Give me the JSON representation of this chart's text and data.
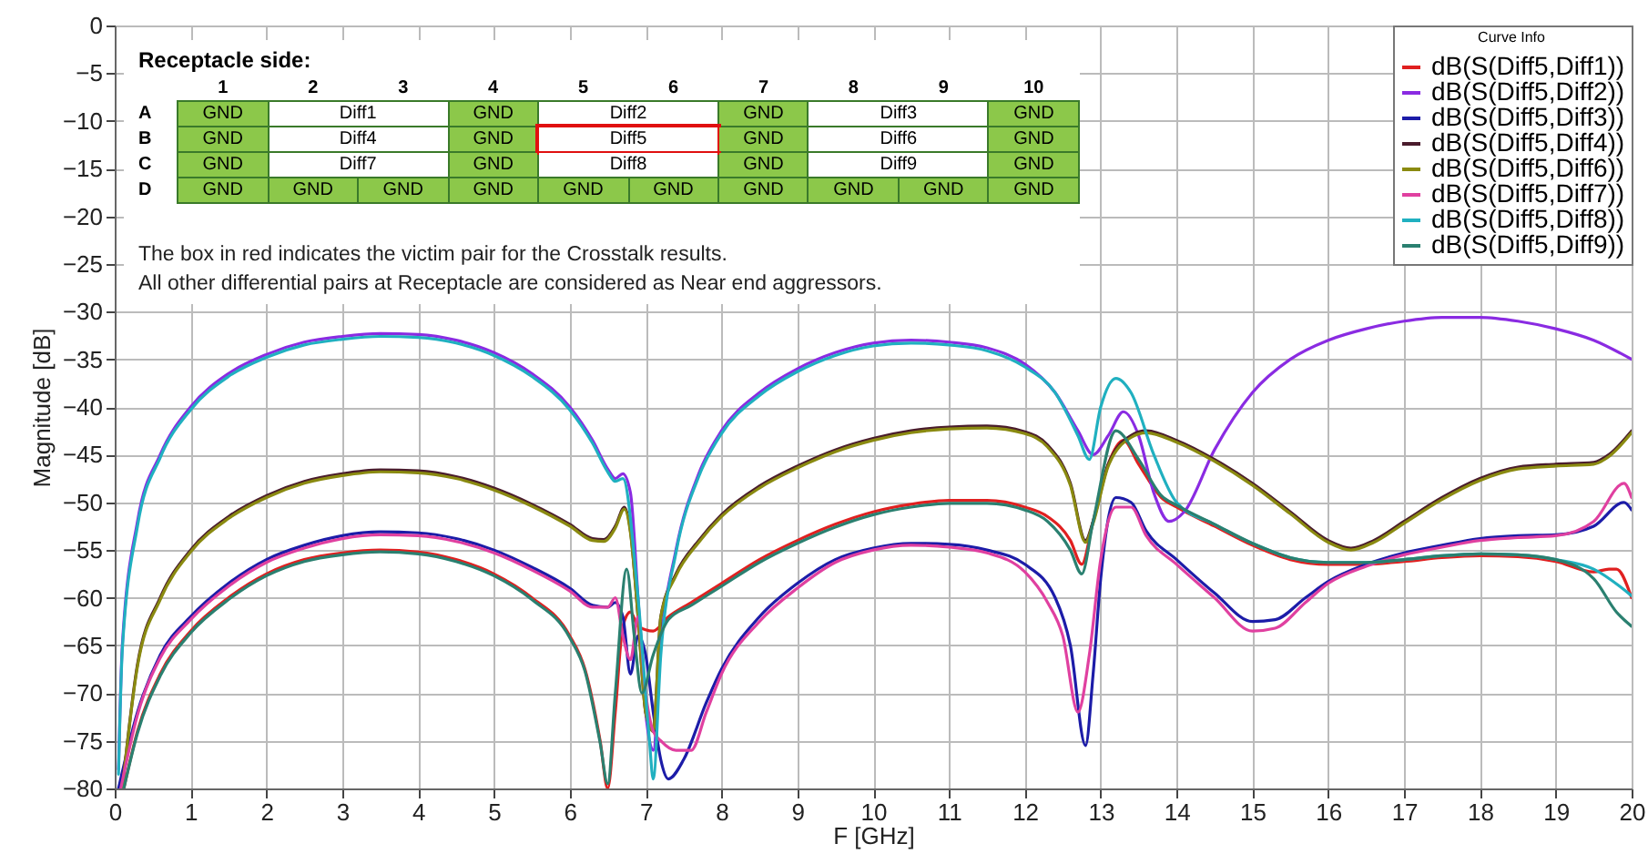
{
  "chart_data": {
    "type": "line",
    "xlabel": "F [GHz]",
    "ylabel": "Magnitude [dB]",
    "legend_title": "Curve Info",
    "legend": "top right",
    "grid": true,
    "xlim": [
      0,
      20
    ],
    "xticks": [
      0,
      1,
      2,
      3,
      4,
      5,
      6,
      7,
      8,
      9,
      10,
      11,
      12,
      13,
      14,
      15,
      16,
      17,
      18,
      19,
      20
    ],
    "ylim": [
      -80,
      0
    ],
    "yticks": [
      0,
      -5,
      -10,
      -15,
      -20,
      -25,
      -30,
      -35,
      -40,
      -45,
      -50,
      -55,
      -60,
      -65,
      -70,
      -75,
      -80
    ],
    "annotations": [
      "Receptacle side:",
      "1",
      "2",
      "3",
      "4",
      "5",
      "6",
      "7",
      "8",
      "9",
      "10",
      "A",
      "GND",
      "Diff1",
      "GND",
      "Diff2",
      "GND",
      "Diff3",
      "GND",
      "B",
      "GND",
      "Diff4",
      "GND",
      "Diff5",
      "GND",
      "Diff6",
      "GND",
      "C",
      "GND",
      "Diff7",
      "GND",
      "Diff8",
      "GND",
      "Diff9",
      "GND",
      "D",
      "GND",
      "GND",
      "GND",
      "GND",
      "GND",
      "GND",
      "GND",
      "GND",
      "GND",
      "GND",
      "The box in red indicates the victim pair for the Crosstalk results.",
      "All other differential pairs at Receptacle are considered as Near end aggressors."
    ],
    "series": [
      {
        "name": "dB(S(Diff5,Diff1))",
        "color": "#e02020",
        "x": [
          0.12,
          0.3,
          0.6,
          1,
          1.5,
          2,
          2.5,
          3,
          3.5,
          4,
          4.5,
          5,
          5.5,
          6,
          6.2,
          6.4,
          6.5,
          6.6,
          6.7,
          6.8,
          6.9,
          7.1,
          7.3,
          7.6,
          8,
          8.5,
          9,
          9.5,
          10,
          10.5,
          11,
          11.5,
          12,
          12.3,
          12.6,
          12.75,
          12.9,
          13.1,
          13.3,
          13.5,
          13.8,
          14,
          14.5,
          15,
          15.5,
          16,
          16.5,
          17,
          17.5,
          18,
          18.5,
          19,
          19.5,
          19.7,
          19.8,
          20
        ],
        "values": [
          -80,
          -74,
          -68,
          -63.5,
          -60,
          -57.5,
          -56,
          -55.3,
          -55,
          -55.2,
          -56,
          -57.5,
          -60,
          -64,
          -67.5,
          -75,
          -80,
          -72,
          -63,
          -61.5,
          -63,
          -63.5,
          -62,
          -60.5,
          -58.5,
          -56,
          -54,
          -52.3,
          -51,
          -50.2,
          -49.8,
          -49.8,
          -50.5,
          -51.5,
          -54,
          -56.5,
          -52,
          -46,
          -43.5,
          -46,
          -49.5,
          -50.5,
          -52.5,
          -54.5,
          -56,
          -56.5,
          -56.5,
          -56.2,
          -55.8,
          -55.6,
          -55.7,
          -56.2,
          -57.3,
          -57,
          -57,
          -60
        ]
      },
      {
        "name": "dB(S(Diff5,Diff2))",
        "color": "#8a2be2",
        "x": [
          0.05,
          0.1,
          0.3,
          0.6,
          1,
          1.5,
          2,
          2.5,
          3,
          3.5,
          4,
          4.5,
          5,
          5.5,
          6,
          6.3,
          6.5,
          6.6,
          6.7,
          6.8,
          6.9,
          7,
          7.1,
          7.2,
          7.4,
          7.7,
          8,
          8.5,
          9,
          9.5,
          10,
          10.5,
          11,
          11.5,
          12,
          12.4,
          12.7,
          12.9,
          13.1,
          13.3,
          13.5,
          13.7,
          13.9,
          14.1,
          14.5,
          15,
          15.5,
          16,
          16.5,
          17,
          17.5,
          18,
          18.5,
          19,
          19.5,
          20
        ],
        "values": [
          -78,
          -65,
          -52,
          -45,
          -40,
          -36.5,
          -34.5,
          -33.2,
          -32.6,
          -32.3,
          -32.4,
          -33,
          -34.3,
          -36.5,
          -40,
          -43.5,
          -46.5,
          -47.5,
          -47,
          -49,
          -60,
          -72,
          -76,
          -65,
          -55,
          -47,
          -42.5,
          -38.5,
          -36,
          -34.3,
          -33.3,
          -33,
          -33.2,
          -33.8,
          -35.5,
          -38.5,
          -42.5,
          -45,
          -43,
          -40.5,
          -43,
          -49,
          -52,
          -51,
          -44.5,
          -38.5,
          -35,
          -33,
          -31.8,
          -31,
          -30.6,
          -30.6,
          -31,
          -31.8,
          -33,
          -35
        ]
      },
      {
        "name": "dB(S(Diff5,Diff3))",
        "color": "#1c1ca8",
        "x": [
          0.05,
          0.3,
          0.6,
          1,
          1.5,
          2,
          2.5,
          3,
          3.5,
          4,
          4.5,
          5,
          5.5,
          6,
          6.3,
          6.5,
          6.6,
          6.7,
          6.8,
          6.9,
          7,
          7.1,
          7.2,
          7.3,
          7.5,
          7.8,
          8,
          8.5,
          9,
          9.5,
          10,
          10.5,
          11,
          11.5,
          12,
          12.4,
          12.6,
          12.8,
          12.9,
          13,
          13.2,
          13.4,
          13.6,
          14,
          14.5,
          15,
          15.3,
          15.7,
          16,
          16.5,
          17,
          17.5,
          18,
          18.5,
          19,
          19.5,
          19.9,
          20
        ],
        "values": [
          -80,
          -72,
          -66,
          -62,
          -58.5,
          -56,
          -54.5,
          -53.5,
          -53.1,
          -53.2,
          -53.8,
          -55,
          -56.8,
          -59,
          -60.8,
          -61,
          -60.5,
          -62,
          -68,
          -64,
          -66,
          -72,
          -77,
          -79,
          -77,
          -71,
          -67.5,
          -62,
          -58.5,
          -56,
          -54.8,
          -54.3,
          -54.4,
          -55,
          -56.5,
          -60,
          -65,
          -75.5,
          -68,
          -58,
          -49.5,
          -50,
          -53,
          -56,
          -59.5,
          -62.5,
          -62.3,
          -60,
          -58.3,
          -56.5,
          -55.3,
          -54.5,
          -53.8,
          -53.5,
          -53.4,
          -52.5,
          -50,
          -50.8
        ]
      },
      {
        "name": "dB(S(Diff5,Diff4))",
        "color": "#4a1c2c",
        "x": [
          0.1,
          0.3,
          0.6,
          1,
          1.5,
          2,
          2.5,
          3,
          3.5,
          4,
          4.5,
          5,
          5.5,
          6,
          6.3,
          6.45,
          6.6,
          6.72,
          6.8,
          6.9,
          7,
          7.1,
          7.2,
          7.4,
          7.7,
          8,
          8.5,
          9,
          9.5,
          10,
          10.5,
          11,
          11.5,
          12,
          12.3,
          12.6,
          12.8,
          12.9,
          13.1,
          13.4,
          13.6,
          14,
          14.5,
          15,
          15.5,
          16,
          16.3,
          16.6,
          17,
          17.5,
          18,
          18.5,
          19,
          19.5,
          19.7,
          20
        ],
        "values": [
          -80,
          -67,
          -60,
          -55,
          -51.5,
          -49.3,
          -47.8,
          -47,
          -46.6,
          -46.7,
          -47.3,
          -48.5,
          -50.2,
          -52.3,
          -53.8,
          -53.9,
          -52.5,
          -50.5,
          -53,
          -62,
          -72,
          -74,
          -62,
          -57.5,
          -54,
          -51.3,
          -48.3,
          -46.2,
          -44.5,
          -43.3,
          -42.5,
          -42.1,
          -42,
          -42.6,
          -44,
          -48,
          -54,
          -52,
          -46,
          -43,
          -42.5,
          -43.5,
          -45.5,
          -48,
          -51,
          -54,
          -54.8,
          -54,
          -52,
          -49.5,
          -47.5,
          -46.3,
          -46,
          -45.8,
          -45,
          -42.5
        ]
      },
      {
        "name": "dB(S(Diff5,Diff6))",
        "color": "#8a8a10",
        "x": [
          0.1,
          0.3,
          0.6,
          1,
          1.5,
          2,
          2.5,
          3,
          3.5,
          4,
          4.5,
          5,
          5.5,
          6,
          6.3,
          6.45,
          6.6,
          6.72,
          6.8,
          6.9,
          7,
          7.1,
          7.2,
          7.4,
          7.7,
          8,
          8.5,
          9,
          9.5,
          10,
          10.5,
          11,
          11.5,
          12,
          12.3,
          12.6,
          12.8,
          12.9,
          13.1,
          13.4,
          13.6,
          14,
          14.5,
          15,
          15.5,
          16,
          16.3,
          16.6,
          17,
          17.5,
          18,
          18.5,
          19,
          19.5,
          19.7,
          20
        ],
        "values": [
          -80,
          -67.2,
          -60.2,
          -55.2,
          -51.7,
          -49.5,
          -48,
          -47.2,
          -46.8,
          -46.9,
          -47.5,
          -48.7,
          -50.4,
          -52.5,
          -54,
          -54.1,
          -52.7,
          -50.7,
          -53.2,
          -62,
          -72,
          -74,
          -62,
          -57.7,
          -54.2,
          -51.5,
          -48.5,
          -46.4,
          -44.7,
          -43.5,
          -42.7,
          -42.3,
          -42.2,
          -42.8,
          -44.2,
          -48.2,
          -54.2,
          -52.2,
          -46.2,
          -43.2,
          -42.7,
          -43.7,
          -45.7,
          -48.2,
          -51.2,
          -54.2,
          -55,
          -54.2,
          -52.2,
          -49.7,
          -47.7,
          -46.5,
          -46.2,
          -46,
          -45.2,
          -42.7
        ]
      },
      {
        "name": "dB(S(Diff5,Diff7))",
        "color": "#e040a0",
        "x": [
          0.08,
          0.3,
          0.6,
          1,
          1.5,
          2,
          2.5,
          3,
          3.5,
          4,
          4.5,
          5,
          5.5,
          6,
          6.3,
          6.5,
          6.6,
          6.7,
          6.8,
          6.9,
          7,
          7.1,
          7.2,
          7.4,
          7.6,
          7.8,
          8,
          8.5,
          9,
          9.5,
          10,
          10.5,
          11,
          11.5,
          12,
          12.3,
          12.5,
          12.7,
          12.85,
          13,
          13.2,
          13.4,
          13.6,
          14,
          14.5,
          15,
          15.3,
          15.7,
          16,
          16.5,
          17,
          17.5,
          18,
          18.5,
          19,
          19.5,
          19.9,
          20
        ],
        "values": [
          -80,
          -72.3,
          -66.3,
          -62.3,
          -58.8,
          -56.3,
          -54.8,
          -53.8,
          -53.4,
          -53.5,
          -54.1,
          -55.3,
          -57.1,
          -59.3,
          -61,
          -61,
          -60,
          -64,
          -66.5,
          -62,
          -70,
          -74,
          -75,
          -76,
          -76,
          -72,
          -68,
          -62.5,
          -59,
          -56.3,
          -55,
          -54.5,
          -54.7,
          -55.3,
          -57.3,
          -60.5,
          -64,
          -72,
          -66,
          -56,
          -50.5,
          -50.5,
          -53.5,
          -56.5,
          -60,
          -63.5,
          -63.2,
          -60.5,
          -58.5,
          -56.7,
          -55.5,
          -54.7,
          -54,
          -53.7,
          -53.5,
          -52,
          -48,
          -49.5
        ]
      },
      {
        "name": "dB(S(Diff5,Diff8))",
        "color": "#20b0c0",
        "x": [
          0.05,
          0.1,
          0.3,
          0.6,
          1,
          1.5,
          2,
          2.5,
          3,
          3.5,
          4,
          4.5,
          5,
          5.5,
          6,
          6.3,
          6.5,
          6.6,
          6.7,
          6.9,
          7.05,
          7.1,
          7.2,
          7.4,
          7.7,
          8,
          8.5,
          9,
          9.5,
          10,
          10.5,
          11,
          11.5,
          12,
          12.4,
          12.7,
          12.85,
          13,
          13.2,
          13.4,
          13.7,
          14,
          14.5,
          15,
          15.5,
          16,
          16.5,
          17,
          17.5,
          18,
          18.5,
          19,
          19.5,
          20
        ],
        "values": [
          -78.5,
          -65.5,
          -52.5,
          -45.3,
          -40.3,
          -36.8,
          -34.8,
          -33.5,
          -32.9,
          -32.6,
          -32.7,
          -33.3,
          -34.6,
          -36.8,
          -40.3,
          -43.8,
          -46.8,
          -47.8,
          -47.5,
          -60,
          -75,
          -79,
          -66,
          -55.3,
          -47.3,
          -42.8,
          -38.8,
          -36.3,
          -34.6,
          -33.6,
          -33.3,
          -33.5,
          -34.1,
          -35.8,
          -38.5,
          -43,
          -45.5,
          -40,
          -37,
          -38.5,
          -45,
          -50,
          -52.3,
          -54.3,
          -55.8,
          -56.3,
          -56.3,
          -56,
          -55.6,
          -55.4,
          -55.5,
          -56,
          -57,
          -59.8
        ]
      },
      {
        "name": "dB(S(Diff5,Diff9))",
        "color": "#2a8070",
        "x": [
          0.12,
          0.3,
          0.6,
          1,
          1.5,
          2,
          2.5,
          3,
          3.5,
          4,
          4.5,
          5,
          5.5,
          6,
          6.2,
          6.4,
          6.5,
          6.6,
          6.75,
          6.85,
          6.95,
          7.1,
          7.3,
          7.6,
          8,
          8.5,
          9,
          9.5,
          10,
          10.5,
          11,
          11.5,
          12,
          12.3,
          12.6,
          12.75,
          12.9,
          13.2,
          13.5,
          13.8,
          14,
          14.5,
          15,
          15.5,
          16,
          16.5,
          17,
          17.5,
          18,
          18.5,
          19,
          19.5,
          19.8,
          20
        ],
        "values": [
          -80,
          -74.2,
          -68.2,
          -63.7,
          -60.2,
          -57.7,
          -56.2,
          -55.5,
          -55.2,
          -55.4,
          -56.2,
          -57.7,
          -60.2,
          -64.2,
          -67.7,
          -75.2,
          -79.5,
          -70,
          -57,
          -64,
          -70,
          -66,
          -62.3,
          -60.8,
          -58.8,
          -56.3,
          -54.3,
          -52.6,
          -51.3,
          -50.5,
          -50.1,
          -50.1,
          -50.8,
          -52,
          -55,
          -57.5,
          -52,
          -42.5,
          -45.5,
          -49.3,
          -50.3,
          -52.3,
          -54.3,
          -55.8,
          -56.3,
          -56.3,
          -56,
          -55.6,
          -55.4,
          -55.5,
          -56,
          -58,
          -61.5,
          -63
        ]
      }
    ]
  }
}
